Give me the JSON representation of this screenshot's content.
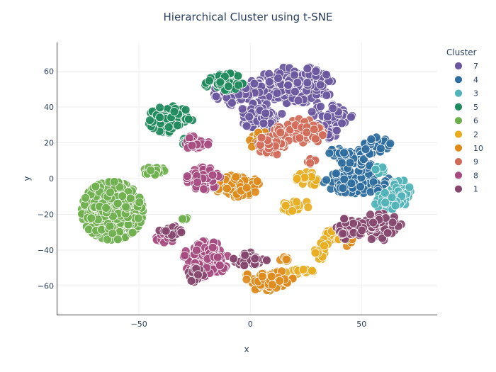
{
  "chart_data": {
    "type": "scatter",
    "title": "Hierarchical Cluster using t-SNE",
    "xlabel": "x",
    "ylabel": "y",
    "xlim": [
      -87,
      84
    ],
    "ylim": [
      -76,
      76
    ],
    "xticks": [
      -50,
      0,
      50
    ],
    "yticks": [
      -60,
      -40,
      -20,
      0,
      20,
      40,
      60
    ],
    "grid": true,
    "legend_title": "Cluster",
    "legend_placement": "top-right",
    "series": [
      {
        "name": "7",
        "color": "#6b57a0",
        "blobs": [
          [
            15,
            52,
            9,
            8,
            140
          ],
          [
            27,
            52,
            8,
            8,
            110
          ],
          [
            -5,
            48,
            9,
            6,
            90
          ],
          [
            5,
            35,
            8,
            6,
            80
          ],
          [
            37,
            35,
            8,
            5,
            50
          ],
          [
            35,
            27,
            5,
            4,
            20
          ]
        ]
      },
      {
        "name": "4",
        "color": "#2e6d9e",
        "blobs": [
          [
            48,
            -2,
            12,
            5,
            130
          ],
          [
            47,
            10,
            6,
            5,
            50
          ],
          [
            57,
            18,
            5,
            4,
            40
          ],
          [
            40,
            15,
            4,
            2,
            15
          ]
        ]
      },
      {
        "name": "3",
        "color": "#4fb3b8",
        "blobs": [
          [
            67,
            -8,
            4,
            6,
            70
          ],
          [
            61,
            -13,
            4,
            4,
            30
          ],
          [
            57,
            5,
            3,
            2,
            10
          ]
        ]
      },
      {
        "name": "5",
        "color": "#1f8a5c",
        "blobs": [
          [
            -36,
            33,
            8,
            6,
            110
          ],
          [
            -12,
            54,
            7,
            4,
            50
          ],
          [
            -29,
            21,
            2,
            2,
            10
          ]
        ]
      },
      {
        "name": "6",
        "color": "#6fb04e",
        "blobs": [
          [
            -62,
            -18,
            11,
            13,
            380
          ],
          [
            -43,
            4,
            4,
            2,
            25
          ],
          [
            -30,
            -22,
            2,
            1,
            5
          ]
        ]
      },
      {
        "name": "2",
        "color": "#e8ac1f",
        "blobs": [
          [
            38,
            -32,
            5,
            3,
            25
          ],
          [
            32,
            -40,
            3,
            4,
            20
          ],
          [
            20,
            -15,
            5,
            3,
            25
          ],
          [
            27,
            0,
            5,
            3,
            25
          ],
          [
            22,
            -52,
            5,
            1,
            15
          ]
        ]
      },
      {
        "name": "10",
        "color": "#de8a1a",
        "blobs": [
          [
            -6,
            -4,
            8,
            5,
            100
          ],
          [
            8,
            -57,
            9,
            5,
            70
          ],
          [
            5,
            21,
            5,
            4,
            35
          ],
          [
            44,
            -34,
            3,
            3,
            15
          ],
          [
            16,
            -45,
            3,
            2,
            10
          ]
        ]
      },
      {
        "name": "9",
        "color": "#d16a57",
        "blobs": [
          [
            24,
            26,
            7,
            6,
            70
          ],
          [
            9,
            18,
            5,
            5,
            55
          ],
          [
            12,
            27,
            3,
            2,
            15
          ],
          [
            27,
            10,
            2,
            2,
            10
          ]
        ]
      },
      {
        "name": "8",
        "color": "#a64b80",
        "blobs": [
          [
            -20,
            -45,
            8,
            8,
            150
          ],
          [
            -38,
            -32,
            4,
            3,
            35
          ],
          [
            -21,
            0,
            6,
            5,
            50
          ],
          [
            -25,
            20,
            5,
            3,
            30
          ]
        ]
      },
      {
        "name": "1",
        "color": "#86466e",
        "blobs": [
          [
            58,
            -27,
            8,
            6,
            90
          ],
          [
            45,
            -28,
            5,
            5,
            45
          ],
          [
            0,
            -45,
            6,
            3,
            40
          ],
          [
            -25,
            -54,
            3,
            3,
            20
          ],
          [
            -36,
            -30,
            4,
            3,
            20
          ]
        ]
      }
    ]
  }
}
